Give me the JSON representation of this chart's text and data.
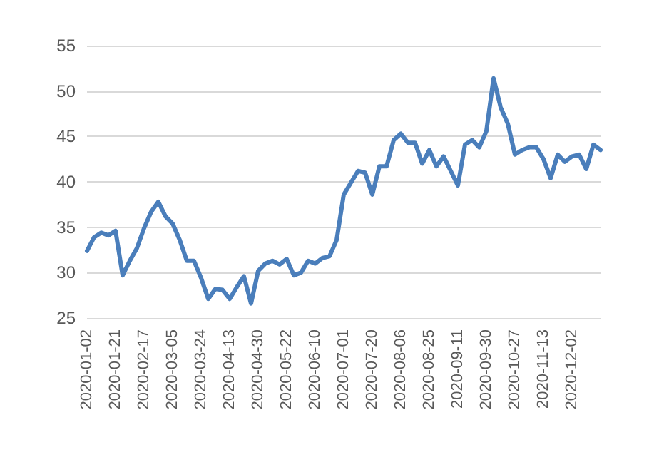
{
  "chart_data": {
    "type": "line",
    "categories": [
      "2020-01-02",
      null,
      null,
      null,
      "2020-01-21",
      null,
      null,
      null,
      "2020-02-17",
      null,
      null,
      null,
      "2020-03-05",
      null,
      null,
      null,
      "2020-03-24",
      null,
      null,
      null,
      "2020-04-13",
      null,
      null,
      null,
      "2020-04-30",
      null,
      null,
      null,
      "2020-05-22",
      null,
      null,
      null,
      "2020-06-10",
      null,
      null,
      null,
      "2020-07-01",
      null,
      null,
      null,
      "2020-07-20",
      null,
      null,
      null,
      "2020-08-06",
      null,
      null,
      null,
      "2020-08-25",
      null,
      null,
      null,
      "2020-09-11",
      null,
      null,
      null,
      "2020-09-30",
      null,
      null,
      null,
      "2020-10-27",
      null,
      null,
      null,
      "2020-11-13",
      null,
      null,
      null,
      "2020-12-02",
      null,
      null,
      null,
      null
    ],
    "series": [
      {
        "color": "#4a7ebb",
        "values": [
          32.4,
          33.9,
          34.4,
          34.1,
          34.6,
          29.7,
          31.3,
          32.7,
          34.9,
          36.7,
          37.8,
          36.2,
          35.4,
          33.6,
          31.3,
          31.3,
          29.4,
          27.1,
          28.2,
          28.1,
          27.1,
          28.4,
          29.6,
          26.6,
          30.2,
          31.0,
          31.3,
          30.9,
          31.5,
          29.7,
          30.0,
          31.3,
          31.0,
          31.6,
          31.8,
          33.6,
          38.6,
          39.9,
          41.2,
          41.0,
          38.6,
          41.7,
          41.7,
          44.6,
          45.3,
          44.3,
          44.3,
          42.0,
          43.5,
          41.7,
          42.8,
          41.2,
          39.6,
          44.1,
          44.6,
          43.8,
          45.6,
          51.4,
          48.2,
          46.4,
          43.0,
          43.5,
          43.8,
          43.8,
          42.5,
          40.4,
          43.0,
          42.2,
          42.8,
          43.0,
          41.4,
          44.1,
          43.5
        ]
      }
    ],
    "ylim": [
      25,
      55
    ],
    "yticks": [
      25,
      30,
      35,
      40,
      45,
      50,
      55
    ],
    "grid": "y",
    "marker": "none",
    "line_style": "solid"
  }
}
